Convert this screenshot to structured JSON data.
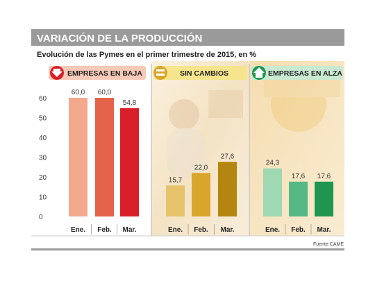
{
  "header": {
    "title": "VARIACIÓN DE LA PRODUCCIÓN",
    "subtitle": "Evolución de las Pymes en el primer trimestre de 2015, en %"
  },
  "source": "Fuente:CAME",
  "colors": {
    "baja": [
      "#f4a98d",
      "#e5634a",
      "#d71f2a"
    ],
    "sin_cambios": [
      "#e7c36c",
      "#d9a62b",
      "#b4860f"
    ],
    "alza": [
      "#9fd9b3",
      "#55b985",
      "#1f9650"
    ],
    "baja_header": "#f7c9b7",
    "sin_cambios_header": "#f6e58c",
    "alza_header": "#c8ead0"
  },
  "chart_data": {
    "type": "bar",
    "ylim": [
      0,
      60
    ],
    "yticks": [
      "0",
      "10",
      "20",
      "30",
      "40",
      "50",
      "60"
    ],
    "panels": [
      {
        "name": "EMPRESAS EN BAJA",
        "icon": "down-arrow-icon",
        "categories": [
          "Ene.",
          "Feb.",
          "Mar."
        ],
        "values": [
          60.0,
          60.0,
          54.8
        ],
        "labels": [
          "60,0",
          "60,0",
          "54,8"
        ]
      },
      {
        "name": "SIN CAMBIOS",
        "icon": "equals-icon",
        "categories": [
          "Ene.",
          "Feb.",
          "Mar."
        ],
        "values": [
          15.7,
          22.0,
          27.6
        ],
        "labels": [
          "15,7",
          "22,0",
          "27,6"
        ]
      },
      {
        "name": "EMPRESAS EN ALZA",
        "icon": "up-arrow-icon",
        "categories": [
          "Ene.",
          "Feb.",
          "Mar."
        ],
        "values": [
          24.3,
          17.6,
          17.6
        ],
        "labels": [
          "24,3",
          "17,6",
          "17,6"
        ]
      }
    ]
  }
}
